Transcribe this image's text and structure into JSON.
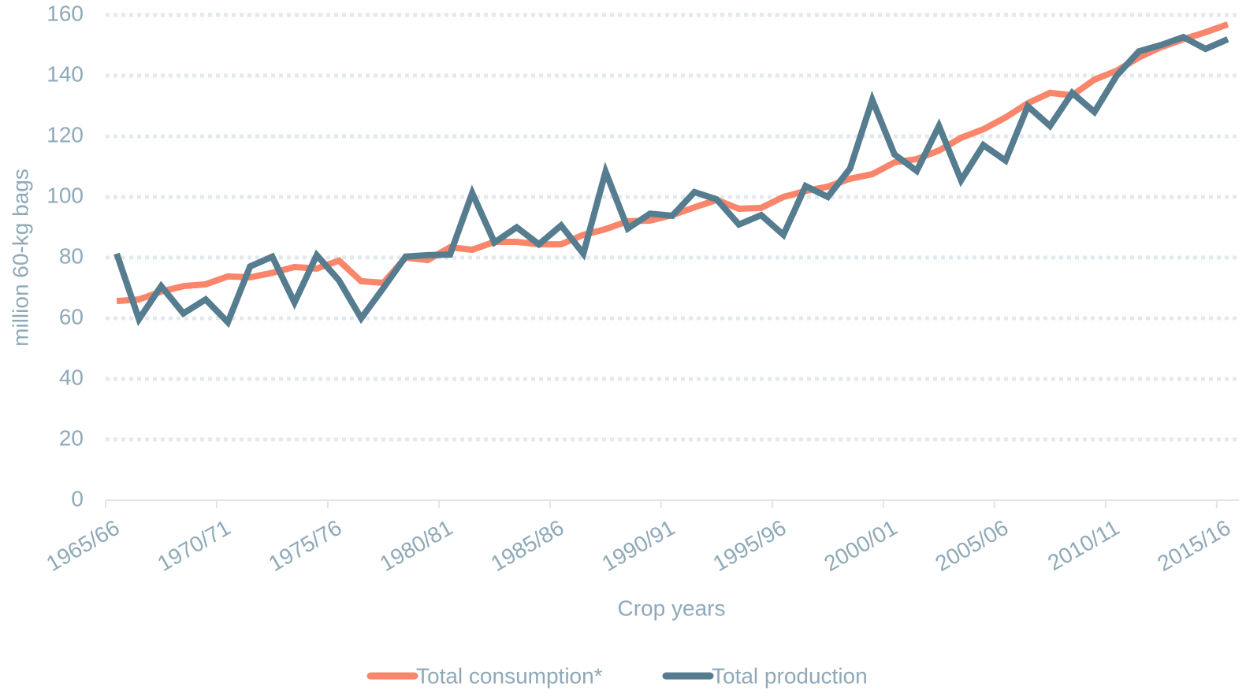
{
  "chart_data": {
    "type": "line",
    "x_label": "Crop years",
    "y_label": "million 60-kg bags",
    "categories": [
      "1965/66",
      null,
      null,
      null,
      null,
      "1970/71",
      null,
      null,
      null,
      null,
      "1975/76",
      null,
      null,
      null,
      null,
      "1980/81",
      null,
      null,
      null,
      null,
      "1985/86",
      null,
      null,
      null,
      null,
      "1990/91",
      null,
      null,
      null,
      null,
      "1995/96",
      null,
      null,
      null,
      null,
      "2000/01",
      null,
      null,
      null,
      null,
      "2005/06",
      null,
      null,
      null,
      null,
      "2010/11",
      null,
      null,
      null,
      null,
      "2015/16"
    ],
    "series": [
      {
        "name": "Total consumption*",
        "color": "#f9866a",
        "values": [
          65.7,
          66.2,
          68.8,
          70.6,
          71.2,
          73.8,
          73.5,
          75,
          76.9,
          76.4,
          79,
          72.2,
          71.7,
          80,
          79.2,
          83.4,
          82.6,
          85.2,
          85.2,
          84.4,
          84.4,
          87.5,
          89.4,
          92,
          92.2,
          94,
          96.6,
          99,
          96.1,
          96.4,
          100,
          102,
          103.4,
          106,
          107.5,
          111.4,
          112.5,
          115.3,
          119.5,
          122.3,
          126.2,
          130.9,
          134.3,
          133.5,
          138.7,
          141.6,
          146,
          149.4,
          152,
          154.3,
          156.9
        ]
      },
      {
        "name": "Total production",
        "color": "#557d8f",
        "values": [
          81.3,
          59.7,
          70.6,
          61.6,
          66.2,
          58.7,
          77.1,
          80.3,
          65.2,
          80.8,
          72.5,
          60,
          70,
          80.3,
          80.8,
          81,
          101.3,
          85,
          90,
          84.4,
          90.6,
          81.3,
          108.3,
          89.6,
          94.5,
          93.8,
          101.6,
          99.2,
          90.9,
          94,
          87.5,
          103.6,
          100,
          109.4,
          132,
          114,
          108.6,
          123.4,
          105.5,
          117.1,
          112,
          129.9,
          123.4,
          134.3,
          128,
          140,
          148,
          150.1,
          152.7,
          148.8,
          152
        ]
      }
    ],
    "ylim": [
      0,
      160
    ],
    "yticks": [
      0,
      20,
      40,
      60,
      80,
      100,
      120,
      140,
      160
    ],
    "grid": true,
    "legend": "bottom"
  }
}
